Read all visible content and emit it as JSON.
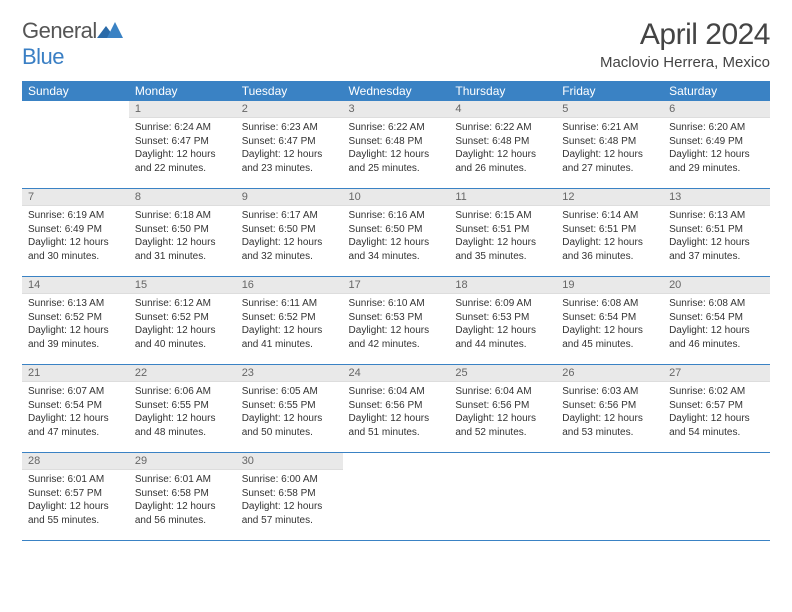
{
  "logo": {
    "text_general": "General",
    "text_blue": "Blue"
  },
  "title": "April 2024",
  "subtitle": "Maclovio Herrera, Mexico",
  "colors": {
    "header_bg": "#3a82c4",
    "header_fg": "#ffffff",
    "daynum_bg": "#e9e9e9",
    "rule": "#3a82c4",
    "text": "#333333",
    "logo_blue": "#3a7fc4"
  },
  "typography": {
    "title_size": 30,
    "subtitle_size": 15,
    "header_size": 12,
    "daynum_size": 11,
    "body_size": 10
  },
  "day_headers": [
    "Sunday",
    "Monday",
    "Tuesday",
    "Wednesday",
    "Thursday",
    "Friday",
    "Saturday"
  ],
  "weeks": [
    [
      {
        "n": "",
        "sr": "",
        "ss": "",
        "dl": ""
      },
      {
        "n": "1",
        "sr": "Sunrise: 6:24 AM",
        "ss": "Sunset: 6:47 PM",
        "dl": "Daylight: 12 hours and 22 minutes."
      },
      {
        "n": "2",
        "sr": "Sunrise: 6:23 AM",
        "ss": "Sunset: 6:47 PM",
        "dl": "Daylight: 12 hours and 23 minutes."
      },
      {
        "n": "3",
        "sr": "Sunrise: 6:22 AM",
        "ss": "Sunset: 6:48 PM",
        "dl": "Daylight: 12 hours and 25 minutes."
      },
      {
        "n": "4",
        "sr": "Sunrise: 6:22 AM",
        "ss": "Sunset: 6:48 PM",
        "dl": "Daylight: 12 hours and 26 minutes."
      },
      {
        "n": "5",
        "sr": "Sunrise: 6:21 AM",
        "ss": "Sunset: 6:48 PM",
        "dl": "Daylight: 12 hours and 27 minutes."
      },
      {
        "n": "6",
        "sr": "Sunrise: 6:20 AM",
        "ss": "Sunset: 6:49 PM",
        "dl": "Daylight: 12 hours and 29 minutes."
      }
    ],
    [
      {
        "n": "7",
        "sr": "Sunrise: 6:19 AM",
        "ss": "Sunset: 6:49 PM",
        "dl": "Daylight: 12 hours and 30 minutes."
      },
      {
        "n": "8",
        "sr": "Sunrise: 6:18 AM",
        "ss": "Sunset: 6:50 PM",
        "dl": "Daylight: 12 hours and 31 minutes."
      },
      {
        "n": "9",
        "sr": "Sunrise: 6:17 AM",
        "ss": "Sunset: 6:50 PM",
        "dl": "Daylight: 12 hours and 32 minutes."
      },
      {
        "n": "10",
        "sr": "Sunrise: 6:16 AM",
        "ss": "Sunset: 6:50 PM",
        "dl": "Daylight: 12 hours and 34 minutes."
      },
      {
        "n": "11",
        "sr": "Sunrise: 6:15 AM",
        "ss": "Sunset: 6:51 PM",
        "dl": "Daylight: 12 hours and 35 minutes."
      },
      {
        "n": "12",
        "sr": "Sunrise: 6:14 AM",
        "ss": "Sunset: 6:51 PM",
        "dl": "Daylight: 12 hours and 36 minutes."
      },
      {
        "n": "13",
        "sr": "Sunrise: 6:13 AM",
        "ss": "Sunset: 6:51 PM",
        "dl": "Daylight: 12 hours and 37 minutes."
      }
    ],
    [
      {
        "n": "14",
        "sr": "Sunrise: 6:13 AM",
        "ss": "Sunset: 6:52 PM",
        "dl": "Daylight: 12 hours and 39 minutes."
      },
      {
        "n": "15",
        "sr": "Sunrise: 6:12 AM",
        "ss": "Sunset: 6:52 PM",
        "dl": "Daylight: 12 hours and 40 minutes."
      },
      {
        "n": "16",
        "sr": "Sunrise: 6:11 AM",
        "ss": "Sunset: 6:52 PM",
        "dl": "Daylight: 12 hours and 41 minutes."
      },
      {
        "n": "17",
        "sr": "Sunrise: 6:10 AM",
        "ss": "Sunset: 6:53 PM",
        "dl": "Daylight: 12 hours and 42 minutes."
      },
      {
        "n": "18",
        "sr": "Sunrise: 6:09 AM",
        "ss": "Sunset: 6:53 PM",
        "dl": "Daylight: 12 hours and 44 minutes."
      },
      {
        "n": "19",
        "sr": "Sunrise: 6:08 AM",
        "ss": "Sunset: 6:54 PM",
        "dl": "Daylight: 12 hours and 45 minutes."
      },
      {
        "n": "20",
        "sr": "Sunrise: 6:08 AM",
        "ss": "Sunset: 6:54 PM",
        "dl": "Daylight: 12 hours and 46 minutes."
      }
    ],
    [
      {
        "n": "21",
        "sr": "Sunrise: 6:07 AM",
        "ss": "Sunset: 6:54 PM",
        "dl": "Daylight: 12 hours and 47 minutes."
      },
      {
        "n": "22",
        "sr": "Sunrise: 6:06 AM",
        "ss": "Sunset: 6:55 PM",
        "dl": "Daylight: 12 hours and 48 minutes."
      },
      {
        "n": "23",
        "sr": "Sunrise: 6:05 AM",
        "ss": "Sunset: 6:55 PM",
        "dl": "Daylight: 12 hours and 50 minutes."
      },
      {
        "n": "24",
        "sr": "Sunrise: 6:04 AM",
        "ss": "Sunset: 6:56 PM",
        "dl": "Daylight: 12 hours and 51 minutes."
      },
      {
        "n": "25",
        "sr": "Sunrise: 6:04 AM",
        "ss": "Sunset: 6:56 PM",
        "dl": "Daylight: 12 hours and 52 minutes."
      },
      {
        "n": "26",
        "sr": "Sunrise: 6:03 AM",
        "ss": "Sunset: 6:56 PM",
        "dl": "Daylight: 12 hours and 53 minutes."
      },
      {
        "n": "27",
        "sr": "Sunrise: 6:02 AM",
        "ss": "Sunset: 6:57 PM",
        "dl": "Daylight: 12 hours and 54 minutes."
      }
    ],
    [
      {
        "n": "28",
        "sr": "Sunrise: 6:01 AM",
        "ss": "Sunset: 6:57 PM",
        "dl": "Daylight: 12 hours and 55 minutes."
      },
      {
        "n": "29",
        "sr": "Sunrise: 6:01 AM",
        "ss": "Sunset: 6:58 PM",
        "dl": "Daylight: 12 hours and 56 minutes."
      },
      {
        "n": "30",
        "sr": "Sunrise: 6:00 AM",
        "ss": "Sunset: 6:58 PM",
        "dl": "Daylight: 12 hours and 57 minutes."
      },
      {
        "n": "",
        "sr": "",
        "ss": "",
        "dl": ""
      },
      {
        "n": "",
        "sr": "",
        "ss": "",
        "dl": ""
      },
      {
        "n": "",
        "sr": "",
        "ss": "",
        "dl": ""
      },
      {
        "n": "",
        "sr": "",
        "ss": "",
        "dl": ""
      }
    ]
  ]
}
